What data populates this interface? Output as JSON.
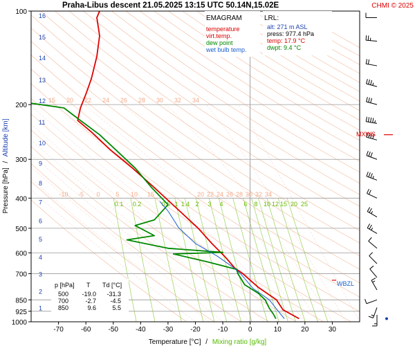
{
  "header": {
    "title": "Praha-Libus   descent   21.05.2025 13:15 UTC  50.14N,15.02E",
    "copyright": "CHMI © 2025"
  },
  "legend": {
    "title": "EMAGRAM",
    "items": [
      {
        "label": "temperature",
        "color": "#dd0000"
      },
      {
        "label": "virt.temp.",
        "color": "#dd0000"
      },
      {
        "label": "dew point",
        "color": "#008800"
      },
      {
        "label": "wet bulb temp.",
        "color": "#1a5fd0"
      }
    ]
  },
  "lrl": {
    "title": "LRL:",
    "lines": [
      {
        "text": "alt: 271 m ASL",
        "color": "#1a3fb0"
      },
      {
        "text": "press: 977.4 hPa",
        "color": "#000000"
      },
      {
        "text": "temp: 17.9 °C",
        "color": "#dd0000"
      },
      {
        "text": "dwpt: 9.4 °C",
        "color": "#008800"
      }
    ]
  },
  "table": {
    "headers": [
      "p [hPa]",
      "T",
      "Td [°C]"
    ],
    "rows": [
      [
        "500",
        "-19.0",
        "-31.3"
      ],
      [
        "700",
        "-2.7",
        "-4.5"
      ],
      [
        "850",
        "9.6",
        "5.5"
      ]
    ]
  },
  "labels": {
    "mxws": "MXWS",
    "wbzl": "WBZL"
  },
  "chart_data": {
    "type": "line",
    "title": "Praha-Libus   descent   21.05.2025 13:15 UTC  50.14N,15.02E",
    "xlabel": "Temperature [°C]",
    "xlabel_sep": "/",
    "xlabel2": "Mixing ratio [g/kg]",
    "ylabel": "Pressure [hPa]",
    "ylabel_sep": "/",
    "ylabel2": "Altitude [km]",
    "xlim": [
      -80,
      40
    ],
    "ylim": [
      1000,
      100
    ],
    "y_scale": "log",
    "x_ticks": [
      -70,
      -60,
      -50,
      -40,
      -30,
      -20,
      -10,
      0,
      10,
      20,
      30
    ],
    "y_ticks": [
      100,
      200,
      300,
      400,
      500,
      600,
      700,
      850,
      925,
      1000
    ],
    "altitude_ticks": [
      {
        "km": 1,
        "p": 900
      },
      {
        "km": 2,
        "p": 795
      },
      {
        "km": 3,
        "p": 700
      },
      {
        "km": 4,
        "p": 617
      },
      {
        "km": 5,
        "p": 541
      },
      {
        "km": 6,
        "p": 472
      },
      {
        "km": 7,
        "p": 411
      },
      {
        "km": 8,
        "p": 357
      },
      {
        "km": 9,
        "p": 308
      },
      {
        "km": 10,
        "p": 265
      },
      {
        "km": 11,
        "p": 227
      },
      {
        "km": 12,
        "p": 194
      },
      {
        "km": 13,
        "p": 166
      },
      {
        "km": 14,
        "p": 141
      },
      {
        "km": 15,
        "p": 121
      },
      {
        "km": 16,
        "p": 103
      }
    ],
    "isobar_lines": [
      200,
      300,
      400,
      500,
      600,
      700,
      850,
      925
    ],
    "series": [
      {
        "name": "temperature",
        "color": "#dd0000",
        "points": [
          [
            17.9,
            977
          ],
          [
            12,
            915
          ],
          [
            9.6,
            850
          ],
          [
            3,
            775
          ],
          [
            -2.7,
            700
          ],
          [
            -5.5,
            673
          ],
          [
            -9,
            620
          ],
          [
            -14,
            560
          ],
          [
            -19,
            500
          ],
          [
            -27,
            430
          ],
          [
            -35,
            370
          ],
          [
            -43,
            320
          ],
          [
            -51,
            280
          ],
          [
            -58,
            245
          ],
          [
            -63,
            225
          ],
          [
            -62,
            205
          ],
          [
            -60,
            185
          ],
          [
            -58,
            165
          ],
          [
            -56,
            140
          ],
          [
            -55,
            120
          ],
          [
            -56,
            105
          ],
          [
            -55,
            100
          ]
        ]
      },
      {
        "name": "dew point",
        "color": "#008800",
        "points": [
          [
            9.4,
            977
          ],
          [
            8.5,
            945
          ],
          [
            7,
            905
          ],
          [
            5.5,
            850
          ],
          [
            3,
            810
          ],
          [
            -2,
            760
          ],
          [
            -4.5,
            700
          ],
          [
            -5,
            678
          ],
          [
            -16,
            640
          ],
          [
            -28,
            605
          ],
          [
            -10,
            598
          ],
          [
            -30,
            580
          ],
          [
            -45,
            545
          ],
          [
            -35,
            528
          ],
          [
            -42,
            490
          ],
          [
            -35,
            470
          ],
          [
            -30,
            420
          ],
          [
            -36,
            370
          ],
          [
            -42,
            320
          ],
          [
            -49,
            280
          ],
          [
            -55,
            250
          ],
          [
            -62,
            225
          ],
          [
            -68,
            205
          ],
          [
            -80,
            198
          ]
        ]
      },
      {
        "name": "wet bulb temp.",
        "color": "#1a5fd0",
        "points": [
          [
            12.5,
            977
          ],
          [
            10.5,
            930
          ],
          [
            7,
            850
          ],
          [
            1,
            780
          ],
          [
            -3.5,
            700
          ],
          [
            -6,
            670
          ],
          [
            -12,
            615
          ],
          [
            -20,
            560
          ],
          [
            -26,
            500
          ],
          [
            -30,
            440
          ],
          [
            -33,
            410
          ]
        ]
      }
    ],
    "dry_adiabat_labels": [
      15,
      20,
      22,
      24,
      26,
      28,
      30,
      32,
      34
    ],
    "moist_adiabat_labels": [
      -10,
      -5,
      0,
      5,
      10,
      15,
      20,
      22,
      24,
      26,
      28,
      30,
      32,
      34
    ],
    "mixing_ratio_labels": [
      "0.1",
      "0.2",
      "0.5",
      "1",
      "1.4",
      "2",
      "3",
      "4",
      "6",
      "8",
      "10",
      "12",
      "15",
      "20",
      "25"
    ],
    "mixing_ratio_values": [
      0.1,
      0.2,
      0.5,
      1,
      1.4,
      2,
      3,
      4,
      6,
      8,
      10,
      12,
      15,
      20,
      25
    ],
    "wind_profile": [
      {
        "p": 105,
        "dir": 270,
        "speed": 10
      },
      {
        "p": 125,
        "dir": 275,
        "speed": 15
      },
      {
        "p": 150,
        "dir": 280,
        "speed": 20
      },
      {
        "p": 175,
        "dir": 285,
        "speed": 25
      },
      {
        "p": 200,
        "dir": 285,
        "speed": 30
      },
      {
        "p": 230,
        "dir": 280,
        "speed": 35
      },
      {
        "p": 260,
        "dir": 285,
        "speed": 40
      },
      {
        "p": 300,
        "dir": 290,
        "speed": 30
      },
      {
        "p": 350,
        "dir": 290,
        "speed": 25
      },
      {
        "p": 400,
        "dir": 295,
        "speed": 20
      },
      {
        "p": 460,
        "dir": 300,
        "speed": 15
      },
      {
        "p": 520,
        "dir": 300,
        "speed": 15
      },
      {
        "p": 580,
        "dir": 310,
        "speed": 10
      },
      {
        "p": 650,
        "dir": 315,
        "speed": 10
      },
      {
        "p": 720,
        "dir": 320,
        "speed": 10
      },
      {
        "p": 790,
        "dir": 330,
        "speed": 5
      },
      {
        "p": 850,
        "dir": 250,
        "speed": 10
      },
      {
        "p": 900,
        "dir": 200,
        "speed": 5
      },
      {
        "p": 950,
        "dir": 180,
        "speed": 5
      }
    ],
    "mxws_pressure": 250,
    "wbzl_pressure": 735
  }
}
